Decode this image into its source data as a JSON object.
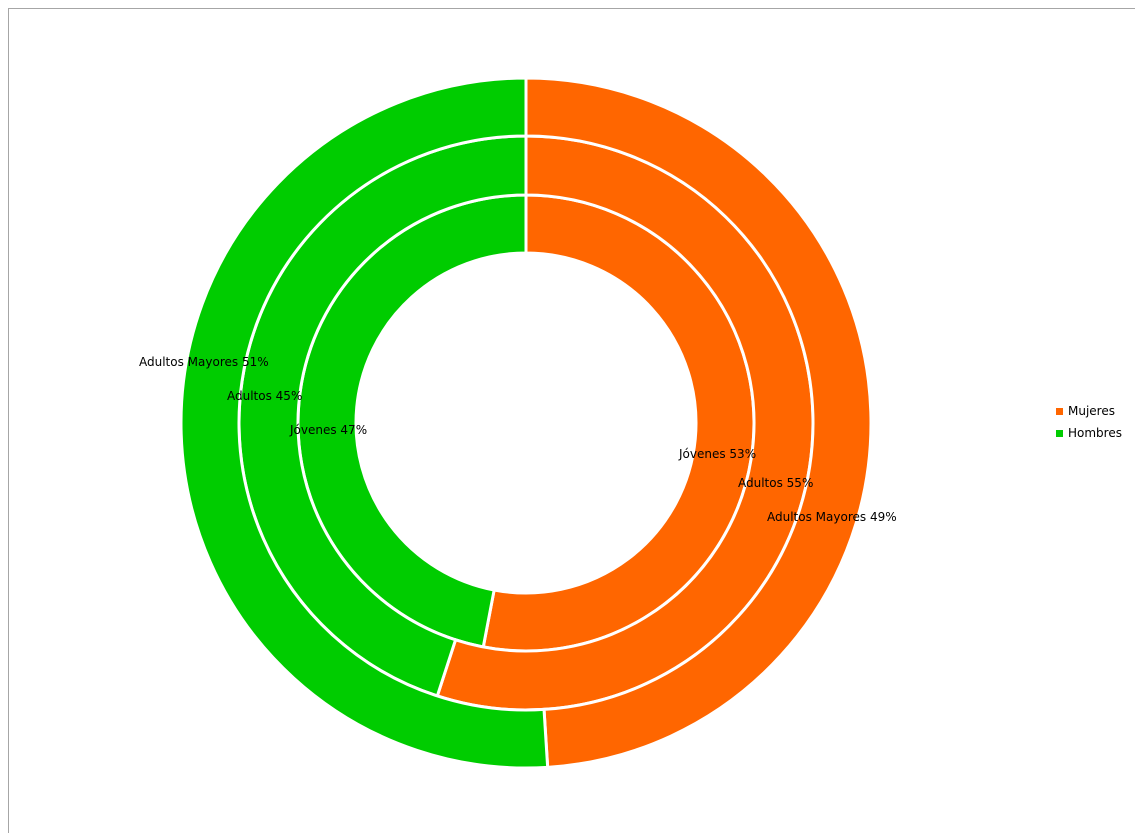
{
  "chart_data": {
    "type": "pie",
    "subtype": "doughnut-multiring",
    "title": "",
    "rings": [
      {
        "name": "Jóvenes",
        "slices": [
          {
            "series": "Mujeres",
            "value": 53,
            "label": "Jóvenes 53%"
          },
          {
            "series": "Hombres",
            "value": 47,
            "label": "Jóvenes 47%"
          }
        ]
      },
      {
        "name": "Adultos",
        "slices": [
          {
            "series": "Mujeres",
            "value": 55,
            "label": "Adultos  55%"
          },
          {
            "series": "Hombres",
            "value": 45,
            "label": "Adultos  45%"
          }
        ]
      },
      {
        "name": "Adultos Mayores",
        "slices": [
          {
            "series": "Mujeres",
            "value": 49,
            "label": "Adultos Mayores 49%"
          },
          {
            "series": "Hombres",
            "value": 51,
            "label": "Adultos Mayores 51%"
          }
        ]
      }
    ],
    "legend": {
      "placement": "right",
      "entries": [
        {
          "name": "Mujeres",
          "color": "#ff6600"
        },
        {
          "name": "Hombres",
          "color": "#00cc00"
        }
      ]
    }
  }
}
